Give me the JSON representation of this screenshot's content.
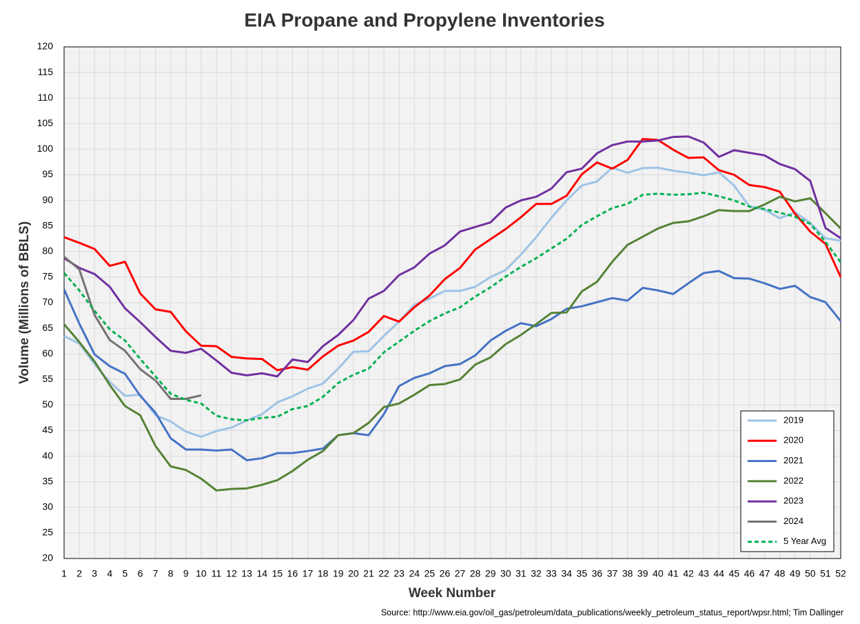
{
  "chart_data": {
    "type": "line",
    "title": "EIA Propane and Propylene Inventories",
    "x_label": "Week Number",
    "y_label": "Volume (Millions of BBLS)",
    "source": "Source: http://www.eia.gov/oil_gas/petroleum/data_publications/weekly_petroleum_status_report/wpsr.html; Tim Dallinger",
    "categories": [
      1,
      2,
      3,
      4,
      5,
      6,
      7,
      8,
      9,
      10,
      11,
      12,
      13,
      14,
      15,
      16,
      17,
      18,
      19,
      20,
      21,
      22,
      23,
      24,
      25,
      26,
      27,
      28,
      29,
      30,
      31,
      32,
      33,
      34,
      35,
      36,
      37,
      38,
      39,
      40,
      41,
      42,
      43,
      44,
      45,
      46,
      47,
      48,
      49,
      50,
      51,
      52
    ],
    "ylim": [
      20,
      120
    ],
    "yticks": [
      20,
      25,
      30,
      35,
      40,
      45,
      50,
      55,
      60,
      65,
      70,
      75,
      80,
      85,
      90,
      95,
      100,
      105,
      110,
      115,
      120
    ],
    "grid": true,
    "legend": "lower right",
    "series": [
      {
        "name": "2019",
        "color": "#9dc3e6",
        "dashed": false,
        "values": [
          63.5,
          62,
          58,
          54.5,
          51.8,
          52,
          48,
          46.8,
          44.8,
          43.8,
          44.9,
          45.6,
          47,
          48.2,
          50.5,
          51.7,
          53.2,
          54.2,
          57.1,
          60.4,
          60.5,
          63.5,
          66.3,
          69.6,
          70.8,
          72.3,
          72.3,
          73.1,
          75,
          76.4,
          79.4,
          82.8,
          86.6,
          90,
          92.9,
          93.7,
          96.4,
          95.4,
          96.3,
          96.4,
          95.8,
          95.4,
          94.9,
          95.5,
          92.9,
          88.8,
          88.2,
          86.5,
          87.7,
          85.6,
          82.6,
          82.1
        ]
      },
      {
        "name": "2020",
        "color": "#ff0000",
        "dashed": false,
        "values": [
          82.8,
          81.7,
          80.5,
          77.2,
          78,
          71.8,
          68.7,
          68.2,
          64.4,
          61.6,
          61.5,
          59.4,
          59.1,
          59,
          56.8,
          57.4,
          56.9,
          59.5,
          61.6,
          62.6,
          64.3,
          67.4,
          66.3,
          69.1,
          71.4,
          74.6,
          76.8,
          80.4,
          82.4,
          84.4,
          86.7,
          89.3,
          89.3,
          90.9,
          95.1,
          97.4,
          96.2,
          97.9,
          102,
          101.8,
          99.9,
          98.3,
          98.4,
          95.9,
          95,
          93,
          92.6,
          91.7,
          87.4,
          83.9,
          81.5,
          75
        ]
      },
      {
        "name": "2021",
        "color": "#4472c4",
        "dashed": false,
        "values": [
          72.6,
          65.9,
          59.9,
          57.6,
          56.1,
          51.8,
          48.5,
          43.5,
          41.3,
          41.3,
          41.1,
          41.3,
          39.2,
          39.6,
          40.6,
          40.6,
          41,
          41.5,
          44.1,
          44.5,
          44.1,
          48.2,
          53.7,
          55.3,
          56.2,
          57.6,
          58,
          59.7,
          62.6,
          64.5,
          66,
          65.4,
          66.8,
          68.8,
          69.3,
          70.1,
          70.9,
          70.4,
          72.9,
          72.4,
          71.7,
          73.8,
          75.8,
          76.2,
          74.8,
          74.7,
          73.8,
          72.7,
          73.3,
          71.1,
          70.1,
          66.4
        ]
      },
      {
        "name": "2022",
        "color": "#548235",
        "dashed": false,
        "values": [
          65.8,
          62.3,
          58.5,
          53.9,
          49.8,
          48,
          42,
          38,
          37.3,
          35.6,
          33.3,
          33.6,
          33.7,
          34.4,
          35.3,
          37.1,
          39.3,
          41,
          44.1,
          44.5,
          46.5,
          49.6,
          50.3,
          52,
          53.9,
          54.1,
          55,
          57.9,
          59.3,
          61.9,
          63.7,
          65.8,
          68,
          68.1,
          72.2,
          74.1,
          78,
          81.3,
          82.9,
          84.5,
          85.6,
          85.9,
          86.9,
          88.1,
          87.9,
          87.9,
          89.2,
          90.7,
          89.8,
          90.4,
          87.5,
          84.5
        ]
      },
      {
        "name": "2023",
        "color": "#7030a0",
        "dashed": false,
        "values": [
          78.7,
          76.8,
          75.6,
          73.1,
          68.9,
          66.2,
          63.3,
          60.6,
          60.2,
          61,
          58.7,
          56.3,
          55.8,
          56.2,
          55.6,
          58.9,
          58.4,
          61.5,
          63.7,
          66.6,
          70.8,
          72.3,
          75.4,
          76.9,
          79.6,
          81.2,
          83.9,
          84.8,
          85.7,
          88.6,
          90,
          90.7,
          92.3,
          95.5,
          96.2,
          99.2,
          100.8,
          101.5,
          101.5,
          101.7,
          102.4,
          102.5,
          101.3,
          98.5,
          99.8,
          99.3,
          98.8,
          97.1,
          96.1,
          93.8,
          84.6,
          82.6
        ]
      },
      {
        "name": "2024",
        "color": "#767171",
        "dashed": false,
        "values": [
          79,
          76.5,
          67.6,
          62.7,
          60.6,
          57,
          54.8,
          51.2,
          51.2,
          51.9,
          null,
          null,
          null,
          null,
          null,
          null,
          null,
          null,
          null,
          null,
          null,
          null,
          null,
          null,
          null,
          null,
          null,
          null,
          null,
          null,
          null,
          null,
          null,
          null,
          null,
          null,
          null,
          null,
          null,
          null,
          null,
          null,
          null,
          null,
          null,
          null,
          null,
          null,
          null,
          null,
          null,
          null
        ]
      },
      {
        "name": "5 Year Avg",
        "color": "#00b050",
        "dashed": true,
        "values": [
          75.8,
          72.4,
          68.4,
          64.8,
          62.6,
          59,
          55.6,
          52.2,
          51,
          50.3,
          47.9,
          47.2,
          47,
          47.5,
          47.7,
          49.2,
          49.8,
          51.6,
          54.3,
          55.9,
          57.1,
          60.3,
          62.4,
          64.5,
          66.4,
          67.9,
          69.1,
          71.2,
          73,
          75.1,
          77,
          78.7,
          80.6,
          82.5,
          85.2,
          86.9,
          88.5,
          89.3,
          91.1,
          91.3,
          91.1,
          91.2,
          91.5,
          90.8,
          90,
          88.8,
          88.3,
          87.6,
          86.8,
          85.4,
          81.9,
          77.9
        ]
      }
    ]
  }
}
